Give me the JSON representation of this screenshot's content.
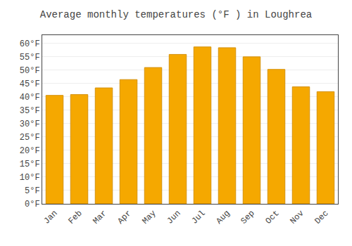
{
  "chart_data": {
    "type": "bar",
    "title": "Average monthly temperatures (°F ) in Loughrea",
    "categories": [
      "Jan",
      "Feb",
      "Mar",
      "Apr",
      "May",
      "Jun",
      "Jul",
      "Aug",
      "Sep",
      "Oct",
      "Nov",
      "Dec"
    ],
    "values": [
      40.5,
      40.8,
      43.3,
      46.4,
      50.9,
      55.8,
      58.6,
      58.3,
      54.9,
      50.2,
      43.7,
      41.9
    ],
    "color": "#F5A800",
    "ylim": [
      0,
      63
    ],
    "yticks": [
      {
        "value": 0,
        "label": "0°F"
      },
      {
        "value": 5,
        "label": "5°F"
      },
      {
        "value": 10,
        "label": "10°F"
      },
      {
        "value": 15,
        "label": "15°F"
      },
      {
        "value": 20,
        "label": "20°F"
      },
      {
        "value": 25,
        "label": "25°F"
      },
      {
        "value": 30,
        "label": "30°F"
      },
      {
        "value": 35,
        "label": "35°F"
      },
      {
        "value": 40,
        "label": "40°F"
      },
      {
        "value": 45,
        "label": "45°F"
      },
      {
        "value": 50,
        "label": "50°F"
      },
      {
        "value": 55,
        "label": "55°F"
      },
      {
        "value": 60,
        "label": "60°F"
      }
    ],
    "grid": true
  }
}
